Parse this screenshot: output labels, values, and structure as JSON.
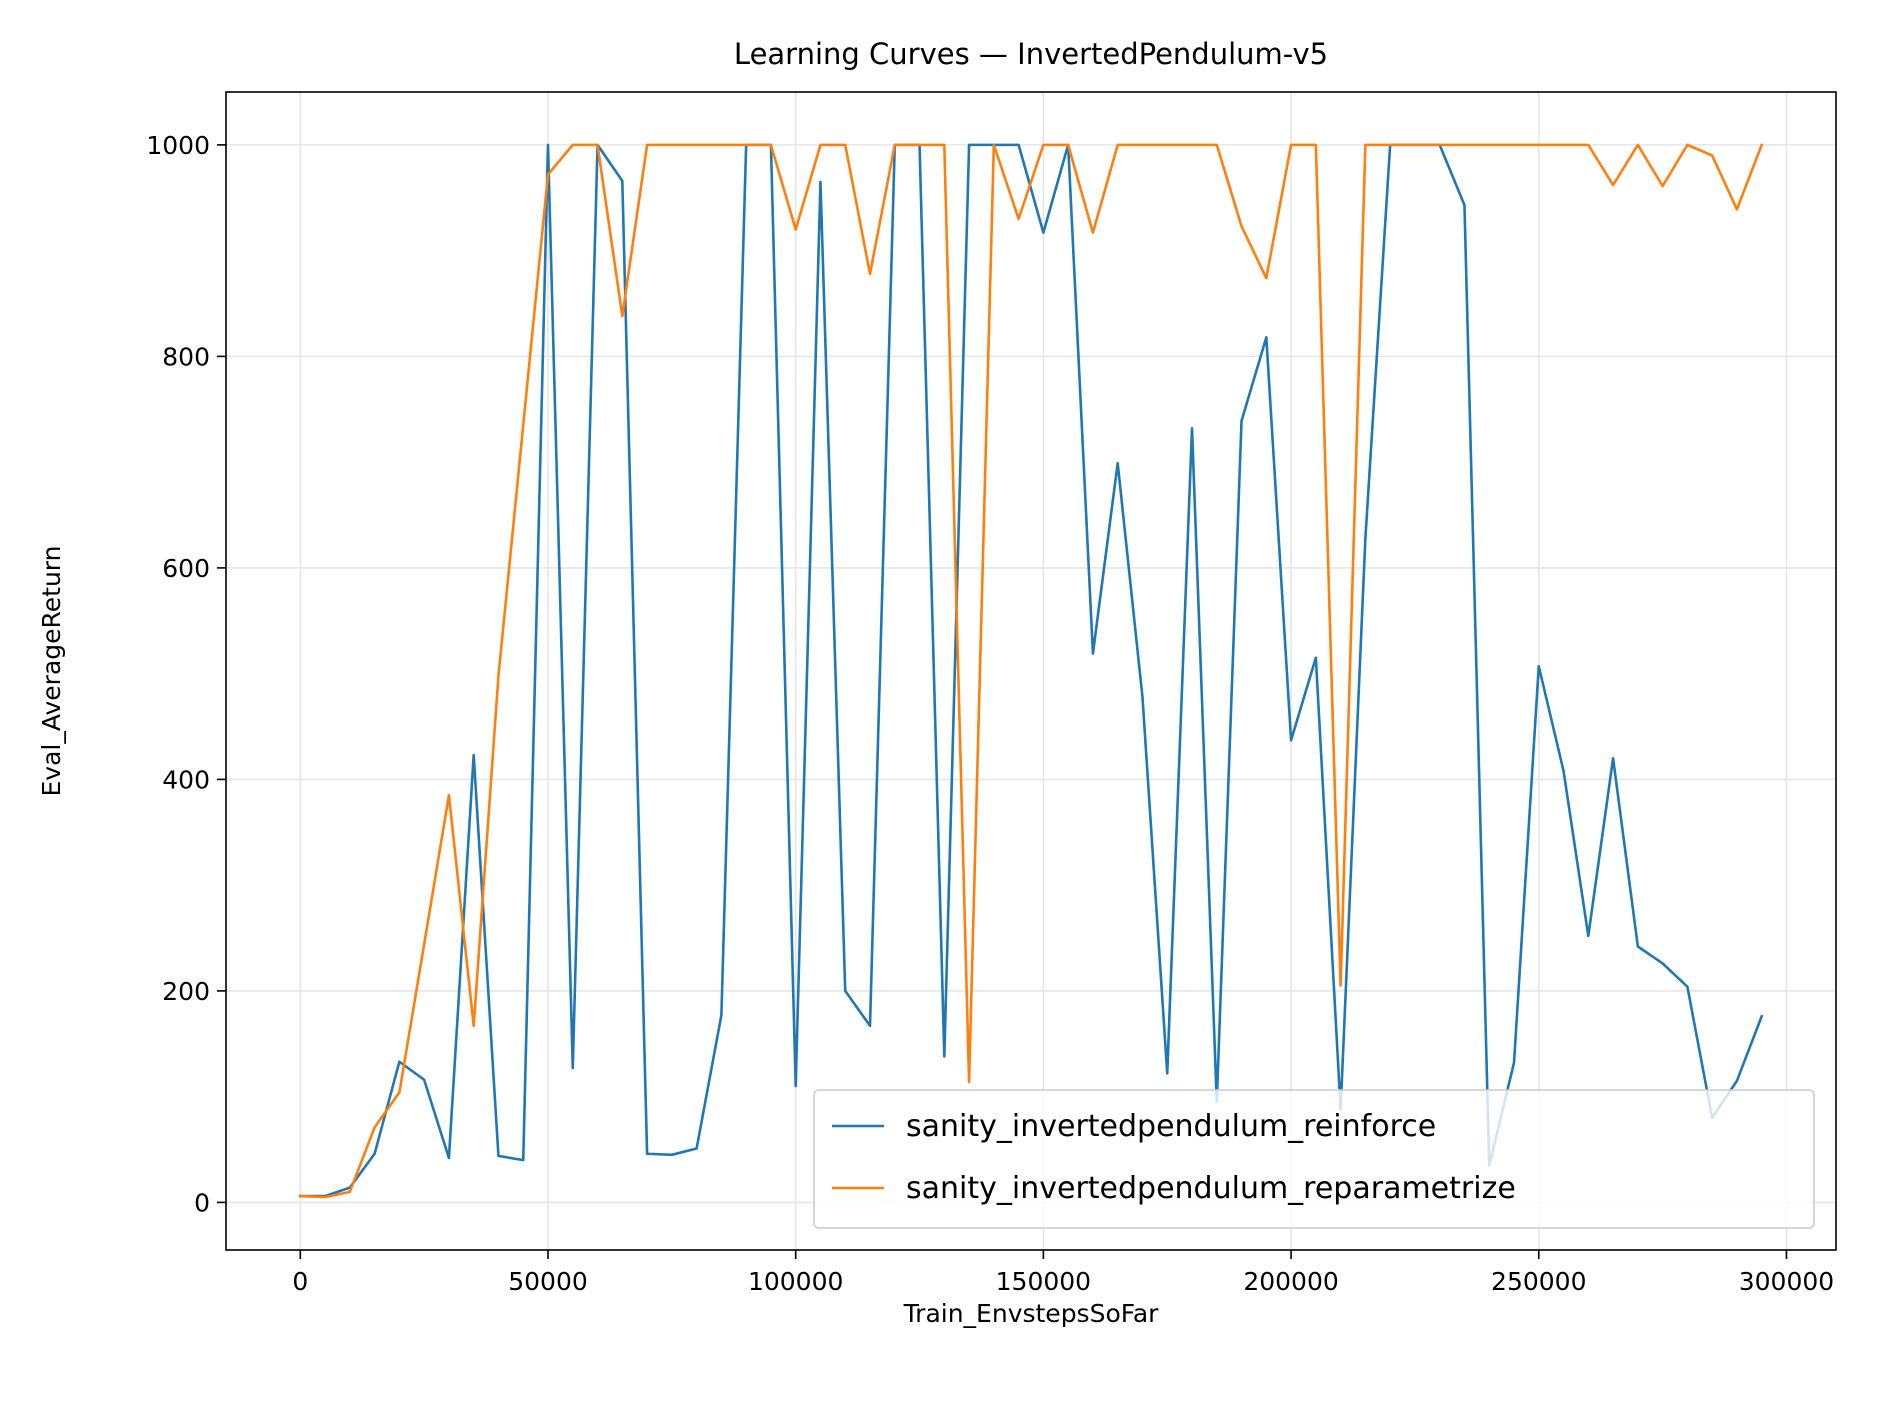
{
  "chart_data": {
    "type": "line",
    "title": "Learning Curves — InvertedPendulum-v5",
    "xlabel": "Train_EnvstepsSoFar",
    "ylabel": "Eval_AverageReturn",
    "xlim": [
      -15000,
      310000
    ],
    "ylim": [
      -45,
      1050
    ],
    "xticks": [
      0,
      50000,
      100000,
      150000,
      200000,
      250000,
      300000
    ],
    "xtick_labels": [
      "0",
      "50000",
      "100000",
      "150000",
      "200000",
      "250000",
      "300000"
    ],
    "yticks": [
      0,
      200,
      400,
      600,
      800,
      1000
    ],
    "ytick_labels": [
      "0",
      "200",
      "400",
      "600",
      "800",
      "1000"
    ],
    "grid": true,
    "legend_position": "bottom-right",
    "series": [
      {
        "name": "sanity_invertedpendulum_reinforce",
        "color": "#1f77b4",
        "x": [
          0,
          5000,
          10000,
          15000,
          20000,
          25000,
          30000,
          35000,
          40000,
          45000,
          50000,
          55000,
          60000,
          65000,
          70000,
          75000,
          80000,
          85000,
          90000,
          95000,
          100000,
          105000,
          110000,
          115000,
          120000,
          125000,
          130000,
          135000,
          140000,
          145000,
          150000,
          155000,
          160000,
          165000,
          170000,
          175000,
          180000,
          185000,
          190000,
          195000,
          200000,
          205000,
          210000,
          215000,
          220000,
          225000,
          230000,
          235000,
          240000,
          245000,
          250000,
          255000,
          260000,
          265000,
          270000,
          275000,
          280000,
          285000,
          290000,
          295000
        ],
        "y": [
          6,
          6,
          14,
          46,
          133,
          116,
          42,
          423,
          44,
          40,
          1000,
          127,
          1000,
          966,
          46,
          45,
          51,
          177,
          1000,
          1000,
          110,
          965,
          200,
          167,
          1000,
          1000,
          138,
          1000,
          1000,
          1000,
          917,
          1000,
          519,
          699,
          478,
          122,
          732,
          95,
          739,
          818,
          437,
          515,
          88,
          628,
          1000,
          1000,
          1000,
          943,
          35,
          132,
          507,
          408,
          252,
          420,
          242,
          226,
          204,
          80,
          115,
          176
        ]
      },
      {
        "name": "sanity_invertedpendulum_reparametrize",
        "color": "#ff7f0e",
        "x": [
          0,
          5000,
          10000,
          15000,
          20000,
          25000,
          30000,
          35000,
          40000,
          45000,
          50000,
          55000,
          60000,
          65000,
          70000,
          75000,
          80000,
          85000,
          90000,
          95000,
          100000,
          105000,
          110000,
          115000,
          120000,
          125000,
          130000,
          135000,
          140000,
          145000,
          150000,
          155000,
          160000,
          165000,
          170000,
          175000,
          180000,
          185000,
          190000,
          195000,
          200000,
          205000,
          210000,
          215000,
          220000,
          225000,
          230000,
          235000,
          240000,
          245000,
          250000,
          255000,
          260000,
          265000,
          270000,
          275000,
          280000,
          285000,
          290000,
          295000
        ],
        "y": [
          6,
          5,
          10,
          71,
          104,
          244,
          385,
          167,
          498,
          735,
          972,
          1000,
          1000,
          838,
          1000,
          1000,
          1000,
          1000,
          1000,
          1000,
          920,
          1000,
          1000,
          878,
          1000,
          1000,
          1000,
          114,
          1000,
          930,
          1000,
          1000,
          917,
          1000,
          1000,
          1000,
          1000,
          1000,
          923,
          874,
          1000,
          1000,
          205,
          1000,
          1000,
          1000,
          1000,
          1000,
          1000,
          1000,
          1000,
          1000,
          1000,
          962,
          1000,
          961,
          1000,
          990,
          939,
          1000
        ]
      }
    ]
  }
}
